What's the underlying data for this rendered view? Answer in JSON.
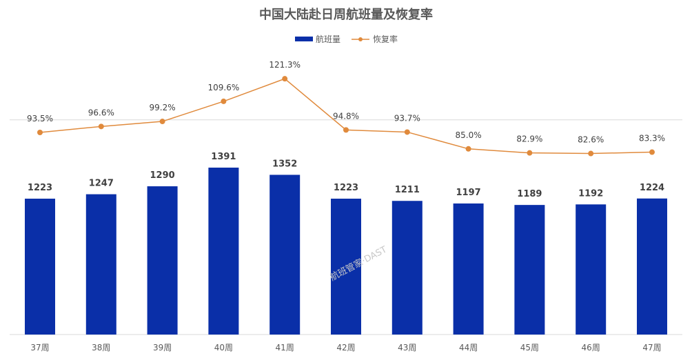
{
  "chart_data": {
    "type": "bar+line",
    "title": "中国大陆赴日周航班量及恢复率",
    "categories": [
      "37周",
      "38周",
      "39周",
      "40周",
      "41周",
      "42周",
      "43周",
      "44周",
      "45周",
      "46周",
      "47周"
    ],
    "series": [
      {
        "name": "航班量",
        "type": "bar",
        "color": "#0A2FA8",
        "values": [
          1223,
          1247,
          1290,
          1391,
          1352,
          1223,
          1211,
          1197,
          1189,
          1192,
          1224
        ],
        "labels": [
          "1223",
          "1247",
          "1290",
          "1391",
          "1352",
          "1223",
          "1211",
          "1197",
          "1189",
          "1192",
          "1224"
        ]
      },
      {
        "name": "恢复率",
        "type": "line",
        "color": "#E08A3C",
        "values": [
          93.5,
          96.6,
          99.2,
          109.6,
          121.3,
          94.8,
          93.7,
          85.0,
          82.9,
          82.6,
          83.3
        ],
        "labels": [
          "93.5%",
          "96.6%",
          "99.2%",
          "109.6%",
          "121.3%",
          "94.8%",
          "93.7%",
          "85.0%",
          "82.9%",
          "82.6%",
          "83.3%"
        ]
      }
    ],
    "legend_position": "top-center",
    "reference_line": 100,
    "watermark": "航班管家·DAST"
  }
}
